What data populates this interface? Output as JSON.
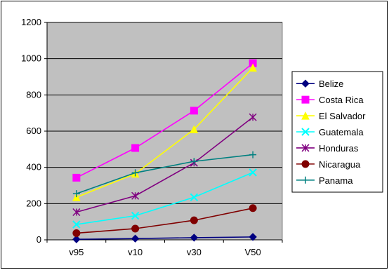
{
  "chart_data": {
    "type": "line",
    "categories": [
      "v95",
      "v10",
      "v30",
      "V50"
    ],
    "ylim": [
      0,
      1200
    ],
    "yticks": [
      0,
      200,
      400,
      600,
      800,
      1000,
      1200
    ],
    "grid": true,
    "legend_position": "right",
    "plot_background": "#c0c0c0",
    "series": [
      {
        "name": "Belize",
        "values": [
          3,
          7,
          12,
          16
        ],
        "color": "#000080",
        "marker": "diamond"
      },
      {
        "name": "Costa Rica",
        "values": [
          343,
          507,
          713,
          975
        ],
        "color": "#ff00ff",
        "marker": "square"
      },
      {
        "name": "El Salvador",
        "values": [
          235,
          365,
          610,
          950
        ],
        "color": "#ffff00",
        "marker": "triangle"
      },
      {
        "name": "Guatemala",
        "values": [
          85,
          133,
          235,
          372
        ],
        "color": "#00ffff",
        "marker": "x"
      },
      {
        "name": "Honduras",
        "values": [
          153,
          243,
          425,
          677
        ],
        "color": "#800080",
        "marker": "star"
      },
      {
        "name": "Nicaragua",
        "values": [
          37,
          62,
          108,
          175
        ],
        "color": "#800000",
        "marker": "circle"
      },
      {
        "name": "Panama",
        "values": [
          255,
          370,
          433,
          470
        ],
        "color": "#008080",
        "marker": "plus"
      }
    ]
  }
}
